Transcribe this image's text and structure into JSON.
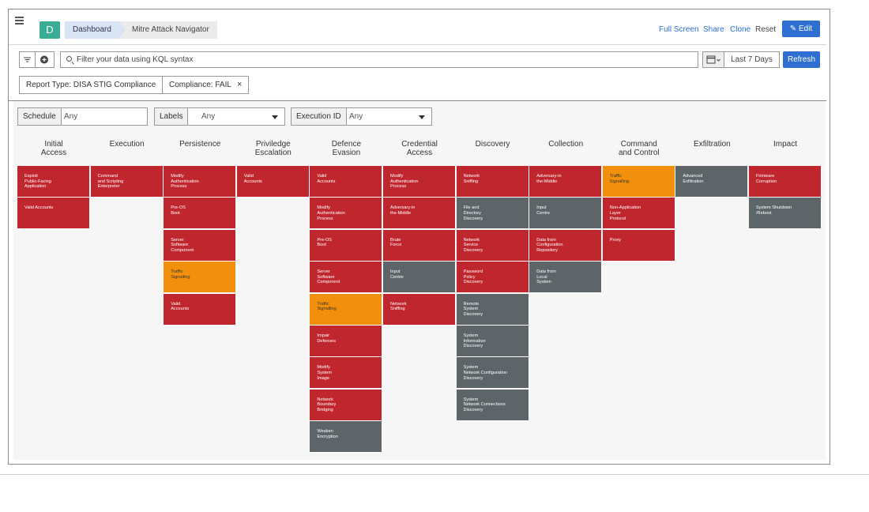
{
  "header": {
    "logo_letter": "D",
    "breadcrumb": [
      "Dashboard",
      "Mitre Attack Navigator"
    ],
    "actions": [
      "Full Screen",
      "Share",
      "Clone",
      "Reset"
    ],
    "edit_label": "Edit"
  },
  "search": {
    "placeholder": "Filter your data using KQL syntax"
  },
  "time_range": "Last 7 Days",
  "refresh_label": "Refresh",
  "chips": [
    {
      "text": "Report Type: DISA STIG Compliance"
    },
    {
      "text": "Compliance: FAIL"
    }
  ],
  "selectors": [
    {
      "label": "Schedule",
      "value": "Any"
    },
    {
      "label": "Labels",
      "value": "Any"
    },
    {
      "label": "Execution ID",
      "value": "Any"
    }
  ],
  "columns": [
    {
      "title": "Initial\nAccess",
      "cells": [
        {
          "t": "Exploit\nPublic-Facing\nApplication",
          "s": "fail"
        },
        {
          "t": "Valid Accounts",
          "s": "fail"
        }
      ]
    },
    {
      "title": "Execution",
      "cells": [
        {
          "t": "Command\nand Scripting\nEnterpreter",
          "s": "fail"
        }
      ]
    },
    {
      "title": "Persistence",
      "cells": [
        {
          "t": "Modify\nAuthentication\nProcess",
          "s": "fail"
        },
        {
          "t": "Pre-OS\nBoot",
          "s": "fail"
        },
        {
          "t": "Server\nSoftware\nComponent",
          "s": "fail"
        },
        {
          "t": "Traffic\nSignalling",
          "s": "warn"
        },
        {
          "t": "Valid\nAccounts",
          "s": "fail"
        }
      ]
    },
    {
      "title": "Priviledge\nEscalation",
      "cells": [
        {
          "t": "Valid\nAccounts",
          "s": "fail"
        }
      ]
    },
    {
      "title": "Defence\nEvasion",
      "cells": [
        {
          "t": "Valid\nAccounts",
          "s": "fail"
        },
        {
          "t": "Modify\nAuthentication\nProcess",
          "s": "fail"
        },
        {
          "t": "Pre-OS\nBoot",
          "s": "fail"
        },
        {
          "t": "Server\nSoftware\nComponent",
          "s": "fail"
        },
        {
          "t": "Traffic\nSignalling",
          "s": "warn"
        },
        {
          "t": "Impair\nDefenses",
          "s": "fail"
        },
        {
          "t": "Modify\nSystem\nImage",
          "s": "fail"
        },
        {
          "t": "Network\nBoundary\nBridging",
          "s": "fail"
        },
        {
          "t": "Weaken\nEncryption",
          "s": "none"
        }
      ]
    },
    {
      "title": "Credential\nAccess",
      "cells": [
        {
          "t": "Modify\nAuthentication\nProcess",
          "s": "fail"
        },
        {
          "t": "Adversary-in\nthe-Middle",
          "s": "fail"
        },
        {
          "t": "Brute\nForce",
          "s": "fail"
        },
        {
          "t": "Input\nCentre",
          "s": "none"
        },
        {
          "t": "Network\nSniffing",
          "s": "fail"
        }
      ]
    },
    {
      "title": "Discovery",
      "cells": [
        {
          "t": "Network\nSniffing",
          "s": "fail"
        },
        {
          "t": "File and\nDirectory\nDiscovery",
          "s": "none"
        },
        {
          "t": "Network\nService\nDiscovery",
          "s": "fail"
        },
        {
          "t": "Password\nPolicy\nDiscovery",
          "s": "fail"
        },
        {
          "t": "Remote\nSystem\nDiscovery",
          "s": "none"
        },
        {
          "t": "System\nInformation\nDiscovery",
          "s": "none"
        },
        {
          "t": "System\nNetwork Configuration\nDiscovery",
          "s": "none"
        },
        {
          "t": "System\nNetwork Connections\nDiscovery",
          "s": "none"
        }
      ]
    },
    {
      "title": "Collection",
      "cells": [
        {
          "t": "Adversary-in\nthe-Middle",
          "s": "fail"
        },
        {
          "t": "Input\nCentre",
          "s": "none"
        },
        {
          "t": "Data from\nConfiguration\nRepository",
          "s": "fail"
        },
        {
          "t": "Data from\nLocal\nSystem",
          "s": "none"
        }
      ]
    },
    {
      "title": "Command\nand Control",
      "cells": [
        {
          "t": "Traffic\nSignalling",
          "s": "warn"
        },
        {
          "t": "Non-Application\nLayer\nProtocol",
          "s": "fail"
        },
        {
          "t": "Proxy",
          "s": "fail"
        }
      ]
    },
    {
      "title": "Exfiltration",
      "cells": [
        {
          "t": "Advanced\nExfiltration",
          "s": "none"
        }
      ]
    },
    {
      "title": "Impact",
      "cells": [
        {
          "t": "Firmware\nCorruption",
          "s": "fail"
        },
        {
          "t": "System Shutdown\n/Reboot",
          "s": "none"
        }
      ]
    }
  ]
}
